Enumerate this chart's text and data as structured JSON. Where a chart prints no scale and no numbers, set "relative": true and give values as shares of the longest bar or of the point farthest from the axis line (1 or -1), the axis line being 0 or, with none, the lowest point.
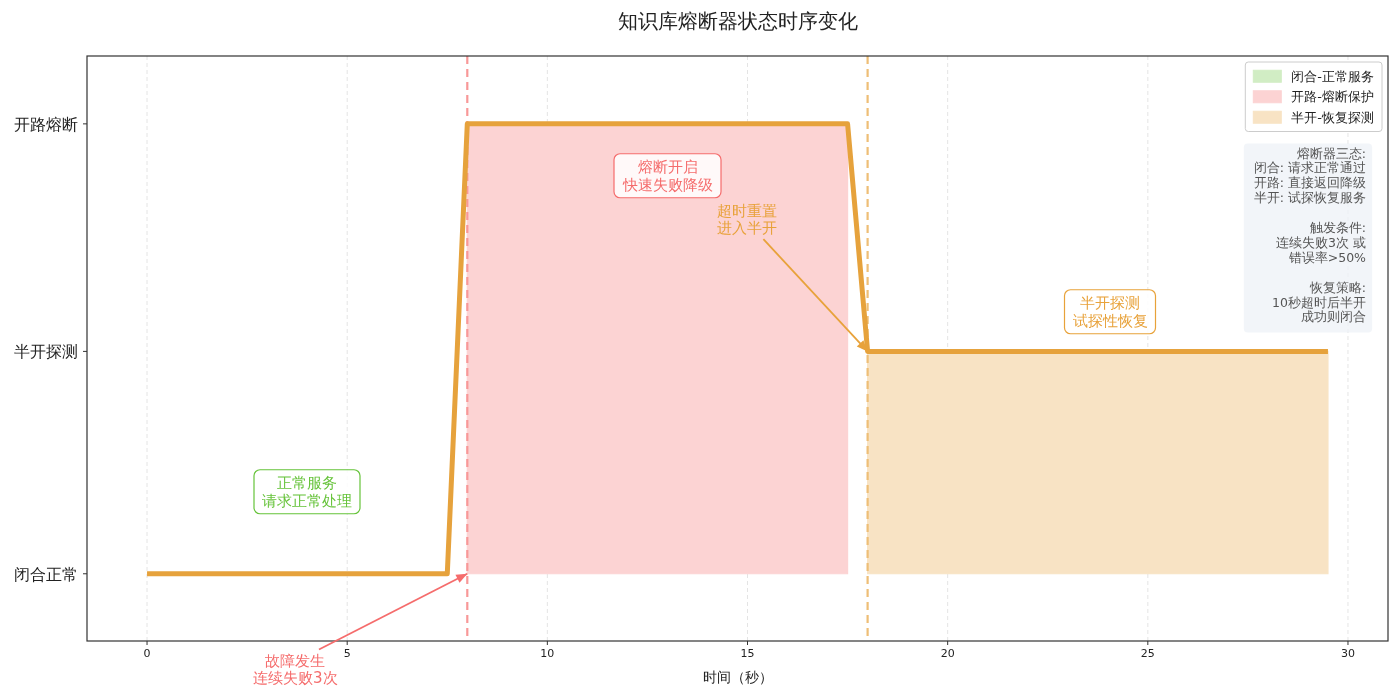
{
  "chart_data": {
    "type": "line",
    "title": "知识库熔断器状态时序变化",
    "xlabel": "时间（秒）",
    "xlim": [
      -1.5,
      31
    ],
    "xticks": [
      0,
      5,
      10,
      15,
      20,
      25,
      30
    ],
    "relative": true,
    "grid": "x",
    "legend": "top right",
    "series": [
      {
        "name": "闭合-正常服务",
        "type": "area",
        "color": "#d1edc4"
      },
      {
        "name": "开路-熔断保护",
        "type": "area",
        "x": [
          8,
          17.5
        ],
        "values": [
          1,
          1
        ],
        "color": "#fcd3d3"
      },
      {
        "name": "半开-恢复探测",
        "type": "area",
        "x": [
          18,
          29.5
        ],
        "values": [
          0.56,
          0.56
        ],
        "color": "#f8e3c4"
      },
      {
        "type": "line",
        "x": [
          0,
          7.5,
          8,
          17.5,
          18,
          29.5
        ],
        "values": [
          0.13,
          0.13,
          1,
          1,
          0.56,
          0.56
        ],
        "color": "#e6a23c"
      }
    ],
    "ref_lines": [
      {
        "axis": "x",
        "value": 8,
        "color": "#f89898",
        "line_style": "dashed"
      },
      {
        "axis": "x",
        "value": 18,
        "color": "#eebe76",
        "line_style": "dashed"
      }
    ],
    "annotations": [
      "正常服务请求正常处理",
      "熔断开启快速失败降级",
      {
        "text": "故障发生连续失败3次",
        "x": 8,
        "y": 0.13
      },
      {
        "text": "超时重置进入半开",
        "x": 18,
        "y": 0.56
      },
      "半开探测试探性恢复",
      "熔断器三态:闭合: 请求正常通过开路: 直接返回降级半开: 试探恢复服务触发条件:连续失败3次 或错误率>50%恢复策略:10秒超时后半开成功则闭合",
      "开路熔断",
      "半开探测",
      "闭合正常"
    ]
  }
}
